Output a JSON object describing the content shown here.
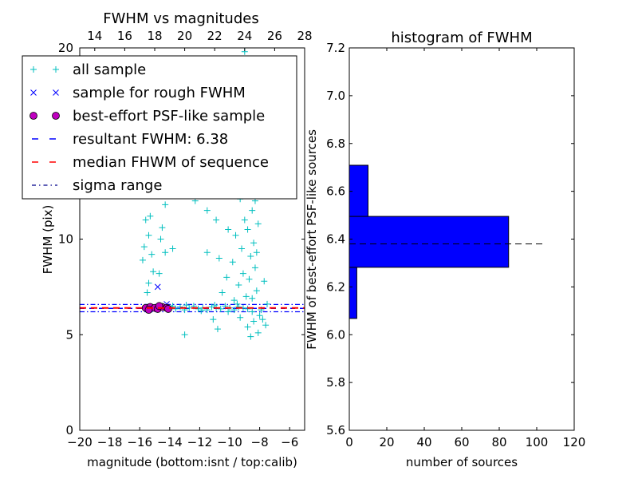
{
  "chart_data": [
    {
      "type": "scatter",
      "title": "FWHM vs magnitudes",
      "xlabel": "magnitude (bottom:isnt / top:calib)",
      "ylabel": "FWHM (pix)",
      "xlim": [
        -20,
        -5
      ],
      "ylim": [
        0,
        20
      ],
      "top_xlim": [
        13,
        28
      ],
      "xticks": [
        "−20",
        "−18",
        "−16",
        "−14",
        "−12",
        "−10",
        "−8",
        "−6"
      ],
      "xtick_values": [
        -20,
        -18,
        -16,
        -14,
        -12,
        -10,
        -8,
        -6
      ],
      "top_xticks": [
        "14",
        "16",
        "18",
        "20",
        "22",
        "24",
        "26",
        "28"
      ],
      "top_xtick_values": [
        14,
        16,
        18,
        20,
        22,
        24,
        26,
        28
      ],
      "yticks": [
        "0",
        "5",
        "10",
        "20"
      ],
      "ytick_values": [
        0,
        5,
        10,
        20
      ],
      "legend_placement": "upper-left",
      "legend": [
        "all sample",
        "sample for rough FWHM",
        "best-effort PSF-like sample",
        "resultant FWHM: 6.38",
        "median FHWM of sequence",
        "sigma range"
      ],
      "colors": {
        "all": "#00bfbf",
        "rough": "#0000ff",
        "best": "#bf00bf",
        "resultant": "#0000ff",
        "median": "#ff0000",
        "sigma": "#00008b"
      },
      "resultant_fwhm": 6.38,
      "median_fwhm": 6.4,
      "sigma_range": [
        6.2,
        6.58
      ],
      "series": {
        "all_sample": [
          [
            -13.9,
            6.4
          ],
          [
            -13.6,
            6.35
          ],
          [
            -13.3,
            6.45
          ],
          [
            -13,
            6.3
          ],
          [
            -12.7,
            6.4
          ],
          [
            -12.4,
            6.5
          ],
          [
            -12.1,
            6.35
          ],
          [
            -11.8,
            6.4
          ],
          [
            -11.5,
            6.3
          ],
          [
            -11.2,
            6.45
          ],
          [
            -10.9,
            6.4
          ],
          [
            -10.6,
            6.35
          ],
          [
            -10.3,
            6.5
          ],
          [
            -10,
            6.4
          ],
          [
            -9.7,
            6.3
          ],
          [
            -9.4,
            6.45
          ],
          [
            -9.1,
            6.4
          ],
          [
            -8.8,
            6.35
          ],
          [
            -8.5,
            6.2
          ],
          [
            -13.8,
            6.5
          ],
          [
            -12.9,
            6.55
          ],
          [
            -11.9,
            6.25
          ],
          [
            -11,
            6.55
          ],
          [
            -10.1,
            6.2
          ],
          [
            -9.5,
            6.6
          ],
          [
            -9,
            19.8
          ],
          [
            -9.2,
            18.5
          ],
          [
            -8.8,
            17.2
          ],
          [
            -9.4,
            16
          ],
          [
            -8.6,
            15.5
          ],
          [
            -9.1,
            14.8
          ],
          [
            -8.9,
            14
          ],
          [
            -9.5,
            13.2
          ],
          [
            -8.7,
            12.8
          ],
          [
            -9.3,
            12.1
          ],
          [
            -8.5,
            11.5
          ],
          [
            -9,
            11
          ],
          [
            -8.8,
            10.5
          ],
          [
            -9.6,
            10.2
          ],
          [
            -8.4,
            9.8
          ],
          [
            -9.2,
            9.5
          ],
          [
            -8.6,
            9.1
          ],
          [
            -9.8,
            8.8
          ],
          [
            -8.3,
            8.5
          ],
          [
            -9.1,
            8.2
          ],
          [
            -8.7,
            7.9
          ],
          [
            -9.4,
            7.6
          ],
          [
            -8.2,
            7.3
          ],
          [
            -8.9,
            7
          ],
          [
            -9.7,
            6.8
          ],
          [
            -8.5,
            6.9
          ],
          [
            -8,
            6
          ],
          [
            -8.4,
            5.7
          ],
          [
            -8.8,
            5.4
          ],
          [
            -7.8,
            5.8
          ],
          [
            -8.1,
            5.1
          ],
          [
            -7.6,
            5.5
          ],
          [
            -9.3,
            5.9
          ],
          [
            -8.6,
            4.9
          ],
          [
            -7.9,
            6.3
          ],
          [
            -10.2,
            8
          ],
          [
            -10.5,
            7.2
          ],
          [
            -10.7,
            9
          ],
          [
            -10.9,
            11
          ],
          [
            -10.4,
            12.3
          ],
          [
            -10.1,
            10.5
          ],
          [
            -11.3,
            13
          ],
          [
            -11.5,
            11.5
          ],
          [
            -10.8,
            13.8
          ],
          [
            -9.8,
            15
          ],
          [
            -9.6,
            17
          ],
          [
            -8.3,
            12
          ],
          [
            -8.1,
            10.8
          ],
          [
            -8.2,
            9.3
          ],
          [
            -7.7,
            7.8
          ],
          [
            -7.5,
            6.6
          ],
          [
            -15.5,
            12.5
          ],
          [
            -15.3,
            11.2
          ],
          [
            -15.6,
            11
          ],
          [
            -15.4,
            10.2
          ],
          [
            -15.7,
            9.6
          ],
          [
            -15.2,
            9.2
          ],
          [
            -15.8,
            8.9
          ],
          [
            -15.1,
            8.3
          ],
          [
            -15.4,
            7.7
          ],
          [
            -15.5,
            7.2
          ],
          [
            -14.3,
            11.8
          ],
          [
            -14.5,
            10.6
          ],
          [
            -14.6,
            10
          ],
          [
            -14.3,
            9.3
          ],
          [
            -14.7,
            8.2
          ],
          [
            -13.8,
            9.5
          ],
          [
            -13,
            5
          ],
          [
            -11.5,
            9.3
          ],
          [
            -10.8,
            5.3
          ],
          [
            -12.3,
            12
          ],
          [
            -13.8,
            13.8
          ],
          [
            -11.1,
            5.8
          ]
        ],
        "rough_sample": [
          [
            -14.8,
            7.5
          ],
          [
            -14.2,
            6.6
          ]
        ],
        "best_effort": [
          [
            -15.6,
            6.4
          ],
          [
            -15.3,
            6.45
          ],
          [
            -15,
            6.4
          ],
          [
            -14.8,
            6.35
          ],
          [
            -14.5,
            6.45
          ],
          [
            -14.2,
            6.4
          ],
          [
            -14.1,
            6.35
          ],
          [
            -15.4,
            6.3
          ],
          [
            -14.7,
            6.5
          ]
        ]
      }
    },
    {
      "type": "bar",
      "orientation": "horizontal",
      "title": "histogram of FWHM",
      "xlabel": "number of sources",
      "ylabel": "FWHM of best-effort PSF-like sources",
      "xlim": [
        0,
        120
      ],
      "ylim": [
        5.6,
        7.2
      ],
      "xticks": [
        "0",
        "20",
        "40",
        "60",
        "80",
        "100",
        "120"
      ],
      "xtick_values": [
        0,
        20,
        40,
        60,
        80,
        100,
        120
      ],
      "yticks": [
        "5.6",
        "5.8",
        "6.0",
        "6.2",
        "6.4",
        "6.6",
        "6.8",
        "7.0",
        "7.2"
      ],
      "ytick_values": [
        5.6,
        5.8,
        6.0,
        6.2,
        6.4,
        6.6,
        6.8,
        7.0,
        7.2
      ],
      "bins": [
        [
          6.068,
          6.282,
          4
        ],
        [
          6.282,
          6.495,
          85
        ],
        [
          6.495,
          6.709,
          10
        ]
      ],
      "bar_color": "#0000ff",
      "resultant_line": {
        "y": 6.38,
        "x_extent": 103
      }
    }
  ]
}
